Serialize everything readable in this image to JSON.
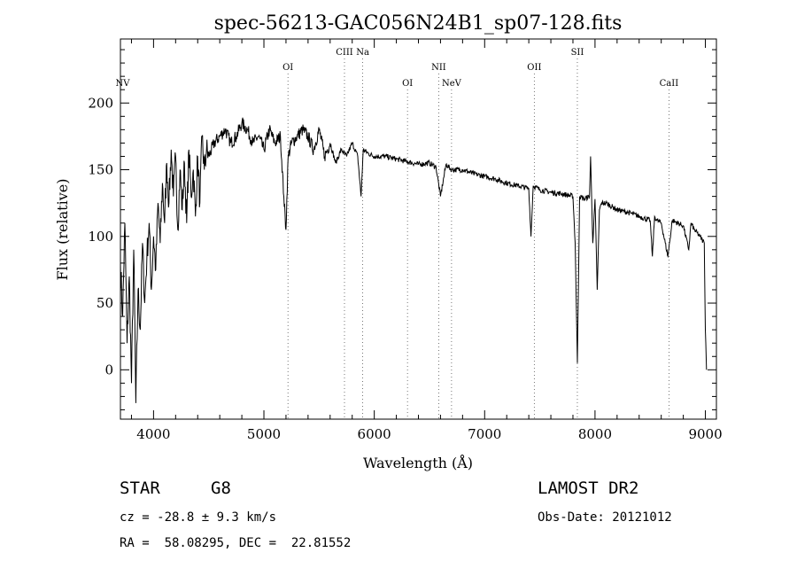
{
  "chart_data": {
    "type": "line",
    "title": "spec-56213-GAC056N24B1_sp07-128.fits",
    "xlabel": "Wavelength (Å)",
    "ylabel": "Flux (relative)",
    "xlim": [
      3700,
      9100
    ],
    "ylim": [
      -37,
      248
    ],
    "x_ticks": [
      4000,
      5000,
      6000,
      7000,
      8000,
      9000
    ],
    "y_ticks": [
      0,
      50,
      100,
      150,
      200
    ],
    "grid": false,
    "series": [
      {
        "color": "#000000",
        "x": [
          3700,
          3720,
          3740,
          3760,
          3780,
          3800,
          3820,
          3840,
          3860,
          3880,
          3900,
          3920,
          3940,
          3960,
          3980,
          4000,
          4020,
          4040,
          4060,
          4080,
          4100,
          4120,
          4140,
          4160,
          4180,
          4200,
          4220,
          4240,
          4260,
          4280,
          4300,
          4320,
          4340,
          4360,
          4380,
          4400,
          4420,
          4440,
          4460,
          4480,
          4500,
          4550,
          4600,
          4650,
          4700,
          4750,
          4800,
          4850,
          4900,
          4950,
          5000,
          5050,
          5100,
          5150,
          5180,
          5200,
          5220,
          5250,
          5300,
          5350,
          5400,
          5450,
          5500,
          5550,
          5600,
          5650,
          5700,
          5750,
          5800,
          5850,
          5880,
          5900,
          5950,
          6000,
          6100,
          6200,
          6300,
          6400,
          6500,
          6560,
          6600,
          6650,
          6700,
          6800,
          6900,
          7000,
          7100,
          7200,
          7300,
          7400,
          7420,
          7440,
          7500,
          7600,
          7700,
          7800,
          7820,
          7840,
          7860,
          7900,
          7950,
          7960,
          7980,
          8000,
          8020,
          8040,
          8060,
          8100,
          8200,
          8300,
          8400,
          8500,
          8520,
          8540,
          8560,
          8600,
          8660,
          8700,
          8800,
          8850,
          8870,
          8900,
          8950,
          8990,
          9000,
          9010
        ],
        "values": [
          80,
          40,
          110,
          20,
          70,
          -10,
          90,
          -25,
          60,
          30,
          95,
          50,
          85,
          110,
          60,
          100,
          75,
          125,
          95,
          140,
          110,
          155,
          125,
          165,
          130,
          160,
          105,
          150,
          120,
          155,
          110,
          165,
          130,
          150,
          115,
          160,
          125,
          175,
          150,
          165,
          160,
          170,
          175,
          180,
          170,
          175,
          185,
          180,
          170,
          175,
          165,
          180,
          170,
          175,
          130,
          105,
          160,
          170,
          175,
          180,
          175,
          165,
          180,
          160,
          170,
          155,
          165,
          160,
          170,
          160,
          130,
          165,
          162,
          160,
          160,
          158,
          156,
          154,
          155,
          152,
          130,
          154,
          150,
          150,
          147,
          145,
          143,
          140,
          138,
          136,
          100,
          138,
          135,
          133,
          132,
          130,
          95,
          5,
          130,
          128,
          130,
          160,
          95,
          128,
          60,
          120,
          125,
          125,
          120,
          118,
          115,
          112,
          85,
          115,
          112,
          110,
          85,
          112,
          108,
          90,
          110,
          105,
          100,
          95,
          30,
          0
        ]
      }
    ],
    "line_markers": [
      {
        "label": "NV",
        "x": 3720,
        "row": 3,
        "line": false
      },
      {
        "label": "OI",
        "x": 5218,
        "row": 2,
        "line": true
      },
      {
        "label": "CIII",
        "x": 5730,
        "row": 1,
        "line": true
      },
      {
        "label": "Na",
        "x": 5895,
        "row": 1,
        "line": true
      },
      {
        "label": "OI",
        "x": 6301,
        "row": 3,
        "line": true
      },
      {
        "label": "NII",
        "x": 6584,
        "row": 2,
        "line": true
      },
      {
        "label": "NeV",
        "x": 6700,
        "row": 3,
        "line": true
      },
      {
        "label": "OII",
        "x": 7450,
        "row": 2,
        "line": true
      },
      {
        "label": "SII",
        "x": 7840,
        "row": 1,
        "line": true
      },
      {
        "label": "CaII",
        "x": 8670,
        "row": 3,
        "line": true
      }
    ]
  },
  "info": {
    "object_class": "STAR",
    "subclass": "G8",
    "survey": "LAMOST DR2",
    "redshift_text": "cz = -28.8 ± 9.3 km/s",
    "obs_date_text": "Obs-Date: 20121012",
    "coords_text": "RA =  58.08295, DEC =  22.81552"
  }
}
